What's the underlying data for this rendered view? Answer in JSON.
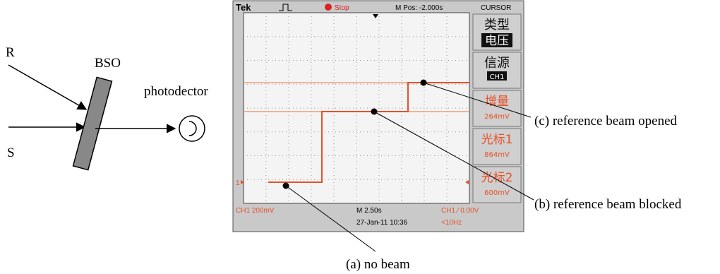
{
  "setup": {
    "reference": "R",
    "crystal": "BSO",
    "signal": "S",
    "detector": "photodector"
  },
  "oscilloscope": {
    "top_bar": {
      "brand": "Tek",
      "state": "Stop",
      "position": "M Pos: -2.000s",
      "mode": "CURSOR"
    },
    "menu": [
      {
        "label": "类型",
        "value": "电压"
      },
      {
        "label": "信源",
        "value": "CH1"
      },
      {
        "label": "增量",
        "value": "264mV"
      },
      {
        "label": "光标1",
        "value": "864mV"
      },
      {
        "label": "光标2",
        "value": "600mV"
      }
    ],
    "channel_marker": "1",
    "bottom_bar": {
      "channel_scale": "CH1 200mV",
      "time_scale": "M 2.50s",
      "trigger": "CH1 ∕ 0.00V",
      "timestamp": "27-Jan-11 10:36",
      "frequency": "<10Hz"
    }
  },
  "annotations": [
    "(a) no beam",
    "(b) reference beam blocked",
    "(c) reference beam opened"
  ]
}
